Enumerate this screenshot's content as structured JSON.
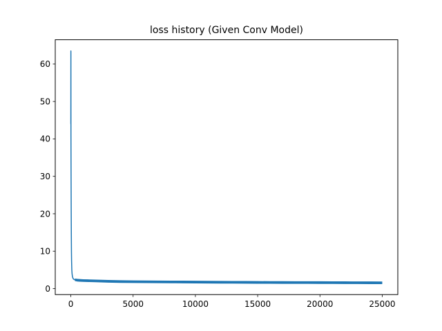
{
  "chart_data": {
    "type": "line",
    "title": "loss history (Given Conv Model)",
    "xlabel": "",
    "ylabel": "",
    "xlim": [
      -1250,
      26250
    ],
    "ylim": [
      -1.6,
      66.5
    ],
    "x_ticks": [
      0,
      5000,
      10000,
      15000,
      20000,
      25000
    ],
    "x_tick_labels": [
      "0",
      "5000",
      "10000",
      "15000",
      "20000",
      "25000"
    ],
    "y_ticks": [
      0,
      10,
      20,
      30,
      40,
      50,
      60
    ],
    "y_tick_labels": [
      "0",
      "10",
      "20",
      "30",
      "40",
      "50",
      "60"
    ],
    "grid": false,
    "legend": "none",
    "series": [
      {
        "color": "#1f77b4",
        "x": [
          0,
          5,
          10,
          20,
          30,
          40,
          50,
          60,
          80,
          100,
          130,
          160,
          200,
          260,
          330,
          420,
          520,
          700,
          1000,
          1500,
          2000,
          3000,
          4000,
          5000,
          6000,
          7000,
          8000,
          9000,
          10000,
          11000,
          12000,
          13000,
          14000,
          15000,
          16000,
          17000,
          18000,
          19000,
          20000,
          21000,
          22000,
          23000,
          24000,
          25000
        ],
        "y": [
          44.0,
          63.5,
          40.5,
          30.0,
          21.0,
          14.5,
          10.0,
          7.5,
          5.0,
          4.0,
          3.2,
          2.9,
          2.6,
          2.45,
          2.35,
          2.3,
          2.25,
          2.2,
          2.15,
          2.1,
          2.05,
          1.95,
          1.88,
          1.85,
          1.82,
          1.8,
          1.78,
          1.76,
          1.74,
          1.72,
          1.7,
          1.68,
          1.67,
          1.65,
          1.64,
          1.63,
          1.62,
          1.61,
          1.6,
          1.59,
          1.58,
          1.57,
          1.56,
          1.55
        ],
        "noise_band": 0.35
      }
    ]
  }
}
